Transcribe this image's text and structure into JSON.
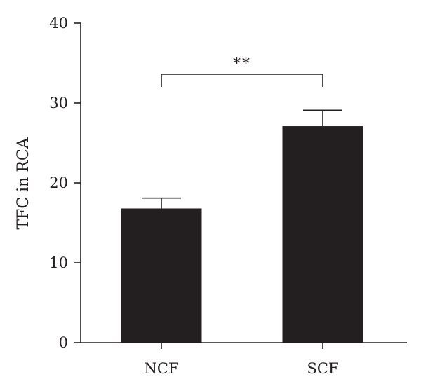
{
  "chart_data": {
    "type": "bar",
    "categories": [
      "NCF",
      "SCF"
    ],
    "values": [
      16.8,
      27.1
    ],
    "errors": [
      1.3,
      2.0
    ],
    "title": "",
    "xlabel": "",
    "ylabel": "TFC in RCA",
    "ylim": [
      0,
      40
    ],
    "yticks": [
      0,
      10,
      20,
      30,
      40
    ],
    "grid": false,
    "bar_color": "#231f20",
    "significance": {
      "between": [
        "NCF",
        "SCF"
      ],
      "label": "**"
    }
  }
}
